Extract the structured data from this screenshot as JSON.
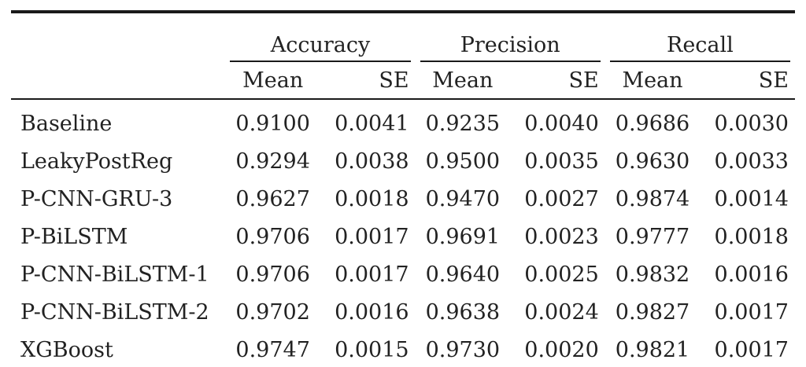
{
  "table": {
    "groups": [
      "Accuracy",
      "Precision",
      "Recall"
    ],
    "subheaders": [
      "Mean",
      "SE",
      "Mean",
      "SE",
      "Mean",
      "SE"
    ],
    "rows": [
      {
        "label": "Baseline",
        "values": [
          "0.9100",
          "0.0041",
          "0.9235",
          "0.0040",
          "0.9686",
          "0.0030"
        ]
      },
      {
        "label": "LeakyPostReg",
        "values": [
          "0.9294",
          "0.0038",
          "0.9500",
          "0.0035",
          "0.9630",
          "0.0033"
        ]
      },
      {
        "label": "P-CNN-GRU-3",
        "values": [
          "0.9627",
          "0.0018",
          "0.9470",
          "0.0027",
          "0.9874",
          "0.0014"
        ]
      },
      {
        "label": "P-BiLSTM",
        "values": [
          "0.9706",
          "0.0017",
          "0.9691",
          "0.0023",
          "0.9777",
          "0.0018"
        ]
      },
      {
        "label": "P-CNN-BiLSTM-1",
        "values": [
          "0.9706",
          "0.0017",
          "0.9640",
          "0.0025",
          "0.9832",
          "0.0016"
        ]
      },
      {
        "label": "P-CNN-BiLSTM-2",
        "values": [
          "0.9702",
          "0.0016",
          "0.9638",
          "0.0024",
          "0.9827",
          "0.0017"
        ]
      },
      {
        "label": "XGBoost",
        "values": [
          "0.9747",
          "0.0015",
          "0.9730",
          "0.0020",
          "0.9821",
          "0.0017"
        ]
      }
    ]
  }
}
